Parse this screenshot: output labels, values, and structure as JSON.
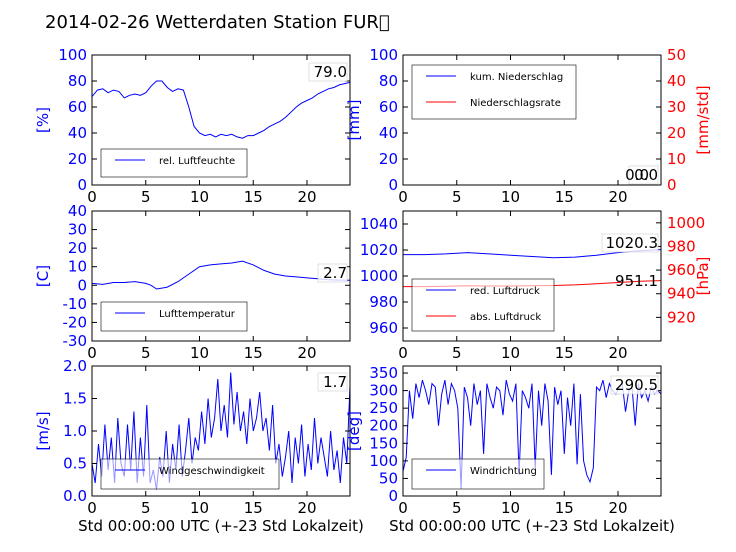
{
  "figure": {
    "title": "2014-02-26 Wetterdaten Station FUR\u0000",
    "xlabel": "Std 00:00:00 UTC (+-23 Std Lokalzeit)"
  },
  "colors": {
    "primary": "#0000ff",
    "secondary": "#ff0000"
  },
  "chart_data": [
    {
      "type": "line",
      "xlim": [
        0,
        24
      ],
      "ylim": [
        0,
        100
      ],
      "xticks": [
        0,
        5,
        10,
        15,
        20
      ],
      "yticks": [
        0,
        20,
        40,
        60,
        80,
        100
      ],
      "ylabel": "[%]",
      "xlabel": "",
      "legend_position": "bottom-left",
      "last_value": "79.0",
      "series": [
        {
          "name": "rel. Luftfeuchte",
          "color": "#0000ff",
          "x": [
            0,
            0.5,
            1,
            1.5,
            2,
            2.5,
            3,
            3.5,
            4,
            4.5,
            5,
            5.5,
            6,
            6.5,
            7,
            7.5,
            8,
            8.5,
            9,
            9.5,
            10,
            10.5,
            11,
            11.5,
            12,
            12.5,
            13,
            13.5,
            14,
            14.5,
            15,
            15.5,
            16,
            16.5,
            17,
            17.5,
            18,
            18.5,
            19,
            19.5,
            20,
            20.5,
            21,
            21.5,
            22,
            22.5,
            23,
            23.5,
            24
          ],
          "y": [
            68,
            73,
            74,
            71,
            73,
            72,
            67,
            69,
            70,
            69,
            71,
            76,
            80,
            80,
            75,
            72,
            74,
            73,
            60,
            45,
            40,
            38,
            39,
            37,
            39,
            38,
            39,
            37,
            36,
            38,
            38,
            40,
            42,
            45,
            47,
            49,
            52,
            56,
            60,
            63,
            65,
            67,
            70,
            72,
            74,
            75,
            77,
            78,
            79
          ]
        }
      ]
    },
    {
      "type": "line",
      "xlim": [
        0,
        24
      ],
      "ylim": [
        0,
        100
      ],
      "y2lim": [
        0,
        50
      ],
      "xticks": [
        0,
        5,
        10,
        15,
        20
      ],
      "yticks": [
        0,
        20,
        40,
        60,
        80,
        100
      ],
      "y2ticks": [
        0,
        10,
        20,
        30,
        40,
        50
      ],
      "ylabel": "[mm]",
      "y2label": "[mm/std]",
      "xlabel": "",
      "legend_position": "top-left",
      "last_value": "0.0",
      "last_value_2": "0.0",
      "series": [
        {
          "name": "kum. Niederschlag",
          "color": "#0000ff",
          "axis": "left",
          "x": [
            0,
            24
          ],
          "y": [
            0,
            0
          ]
        },
        {
          "name": "Niederschlagsrate",
          "color": "#ff0000",
          "axis": "right",
          "x": [
            0,
            24
          ],
          "y": [
            0,
            0
          ]
        }
      ]
    },
    {
      "type": "line",
      "xlim": [
        0,
        24
      ],
      "ylim": [
        -30,
        40
      ],
      "xticks": [
        0,
        5,
        10,
        15,
        20
      ],
      "yticks": [
        -30,
        -20,
        -10,
        0,
        10,
        20,
        30,
        40
      ],
      "ylabel": "[C]",
      "xlabel": "",
      "legend_position": "bottom-left",
      "last_value": "2.7",
      "series": [
        {
          "name": "Lufttemperatur",
          "color": "#0000ff",
          "x": [
            0,
            1,
            2,
            3,
            4,
            5,
            5.5,
            6,
            6.5,
            7,
            8,
            9,
            10,
            11,
            12,
            13,
            14,
            15,
            16,
            17,
            18,
            19,
            20,
            21,
            22,
            23,
            24
          ],
          "y": [
            1,
            0.5,
            1.5,
            1.5,
            2,
            1,
            0,
            -2,
            -1.5,
            -1,
            2,
            6,
            10,
            11,
            11.5,
            12,
            13,
            11,
            8,
            6,
            5,
            4.5,
            4,
            3.5,
            3,
            2.8,
            2.7
          ]
        }
      ]
    },
    {
      "type": "line",
      "xlim": [
        0,
        24
      ],
      "ylim": [
        950,
        1050
      ],
      "y2lim": [
        900,
        1010
      ],
      "xticks": [
        0,
        5,
        10,
        15,
        20
      ],
      "yticks": [
        960,
        980,
        1000,
        1020,
        1040
      ],
      "y2ticks": [
        920,
        940,
        960,
        980,
        1000
      ],
      "ylabel": "",
      "y2label": "[hPa]",
      "xlabel": "",
      "legend_position": "bottom-left",
      "last_value": "1020.3",
      "last_value_2": "951.1",
      "series": [
        {
          "name": "red. Luftdruck",
          "color": "#0000ff",
          "axis": "left",
          "x": [
            0,
            2,
            4,
            6,
            8,
            10,
            12,
            14,
            16,
            18,
            20,
            22,
            24
          ],
          "y": [
            1016.5,
            1016.5,
            1017,
            1018,
            1017,
            1016,
            1015,
            1014,
            1014.5,
            1016,
            1018,
            1019.5,
            1020.3
          ]
        },
        {
          "name": "abs. Luftdruck",
          "color": "#ff0000",
          "axis": "right",
          "x": [
            0,
            2,
            4,
            6,
            8,
            10,
            12,
            14,
            16,
            18,
            20,
            22,
            24
          ],
          "y": [
            946,
            946,
            946.3,
            946.8,
            946.5,
            946.5,
            946.8,
            947,
            947.5,
            948.5,
            949.5,
            950.5,
            951.1
          ]
        }
      ]
    },
    {
      "type": "line",
      "xlim": [
        0,
        24
      ],
      "ylim": [
        0,
        2
      ],
      "xticks": [
        0,
        5,
        10,
        15,
        20
      ],
      "yticks": [
        0.0,
        0.5,
        1.0,
        1.5,
        2.0
      ],
      "ylabel": "[m/s]",
      "xlabel": "Std 00:00:00 UTC (+-23 Std Lokalzeit)",
      "legend_position": "bottom-left",
      "last_value": "1.7",
      "series": [
        {
          "name": "Windgeschwindigkeit",
          "color": "#0000ff",
          "x": [
            0,
            0.3,
            0.6,
            0.9,
            1.2,
            1.5,
            1.8,
            2.1,
            2.4,
            2.7,
            3,
            3.3,
            3.6,
            3.9,
            4.2,
            4.5,
            4.8,
            5.1,
            5.4,
            5.7,
            6,
            6.3,
            6.6,
            6.9,
            7.2,
            7.5,
            7.8,
            8.1,
            8.4,
            8.7,
            9,
            9.3,
            9.6,
            9.9,
            10.2,
            10.5,
            10.8,
            11.1,
            11.4,
            11.7,
            12,
            12.3,
            12.6,
            12.9,
            13.2,
            13.5,
            13.8,
            14.1,
            14.4,
            14.7,
            15,
            15.3,
            15.6,
            15.9,
            16.2,
            16.5,
            16.8,
            17.1,
            17.4,
            17.7,
            18,
            18.3,
            18.6,
            18.9,
            19.2,
            19.5,
            19.8,
            20.1,
            20.4,
            20.7,
            21,
            21.3,
            21.6,
            21.9,
            22.2,
            22.5,
            22.8,
            23.1,
            23.4,
            23.7,
            24
          ],
          "y": [
            0.5,
            0.2,
            0.8,
            0.3,
            1.1,
            0.4,
            0.9,
            0.2,
            1.2,
            0.5,
            0.3,
            1.1,
            0.4,
            1.3,
            0.2,
            0.9,
            0.3,
            1.4,
            0.2,
            0.4,
            0.1,
            0.6,
            0.3,
            1.0,
            0.2,
            0.8,
            0.4,
            1.1,
            0.3,
            0.7,
            1.2,
            0.5,
            0.9,
            0.7,
            1.3,
            0.8,
            1.5,
            0.9,
            1.2,
            1.8,
            1.0,
            1.4,
            0.9,
            1.9,
            1.1,
            1.6,
            1.0,
            1.3,
            0.8,
            1.5,
            1.0,
            1.2,
            1.6,
            1.0,
            1.2,
            0.7,
            1.4,
            0.5,
            0.8,
            0.3,
            0.6,
            1.0,
            0.2,
            0.9,
            0.5,
            1.1,
            0.3,
            0.8,
            0.4,
            1.2,
            0.5,
            0.9,
            0.6,
            0.3,
            1.0,
            0.4,
            0.7,
            0.2,
            0.9,
            0.5,
            1.7
          ]
        }
      ]
    },
    {
      "type": "line",
      "xlim": [
        0,
        24
      ],
      "ylim": [
        0,
        370
      ],
      "xticks": [
        0,
        5,
        10,
        15,
        20
      ],
      "yticks": [
        0,
        50,
        100,
        150,
        200,
        250,
        300,
        350
      ],
      "ylabel": "[deg]",
      "xlabel": "Std 00:00:00 UTC (+-23 Std Lokalzeit)",
      "legend_position": "bottom-left",
      "last_value": "290.5",
      "series": [
        {
          "name": "Windrichtung",
          "color": "#0000ff",
          "x": [
            0,
            0.3,
            0.6,
            0.9,
            1.2,
            1.5,
            1.8,
            2.1,
            2.4,
            2.7,
            3,
            3.3,
            3.6,
            3.9,
            4.2,
            4.5,
            4.8,
            5.1,
            5.4,
            5.7,
            6,
            6.3,
            6.6,
            6.9,
            7.2,
            7.5,
            7.8,
            8.1,
            8.4,
            8.7,
            9,
            9.3,
            9.6,
            9.9,
            10.2,
            10.5,
            10.8,
            11.1,
            11.4,
            11.7,
            12,
            12.3,
            12.6,
            12.9,
            13.2,
            13.5,
            13.8,
            14.1,
            14.4,
            14.7,
            15,
            15.3,
            15.6,
            15.9,
            16.2,
            16.5,
            16.8,
            17.1,
            17.4,
            17.7,
            18,
            18.3,
            18.6,
            18.9,
            19.2,
            19.5,
            19.8,
            20.1,
            20.4,
            20.7,
            21,
            21.3,
            21.6,
            21.9,
            22.2,
            22.5,
            22.8,
            23.1,
            23.4,
            23.7,
            24
          ],
          "y": [
            70,
            110,
            300,
            220,
            320,
            280,
            330,
            300,
            260,
            320,
            310,
            200,
            290,
            330,
            260,
            320,
            300,
            250,
            20,
            310,
            280,
            200,
            320,
            260,
            300,
            120,
            320,
            280,
            250,
            310,
            300,
            230,
            330,
            290,
            270,
            320,
            60,
            300,
            280,
            250,
            320,
            80,
            300,
            200,
            320,
            270,
            60,
            310,
            260,
            300,
            120,
            280,
            200,
            320,
            90,
            290,
            100,
            60,
            40,
            80,
            310,
            300,
            330,
            280,
            320,
            300,
            290,
            310,
            320,
            240,
            300,
            310,
            200,
            320,
            280,
            300,
            270,
            310,
            290,
            300,
            290.5
          ]
        }
      ]
    }
  ]
}
